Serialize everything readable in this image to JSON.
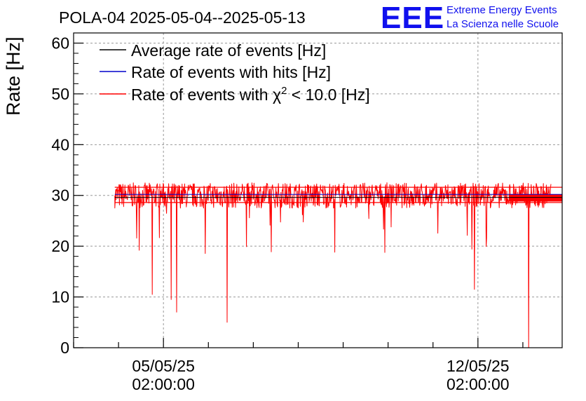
{
  "chart_data": {
    "type": "line",
    "title": "POLA-04 2025-05-04--2025-05-13",
    "ylabel": "Rate [Hz]",
    "xlabel": "",
    "ylim": [
      0,
      62
    ],
    "y_ticks": [
      0,
      10,
      20,
      30,
      40,
      50,
      60
    ],
    "x_tick_labels": [
      {
        "date": "05/05/25",
        "time": "02:00:00"
      },
      {
        "date": "12/05/25",
        "time": "02:00:00"
      }
    ],
    "x_range_days": [
      "2025-05-03 02:00",
      "2025-05-13 23:00"
    ],
    "grid": true,
    "legend_position": "top-left",
    "series": [
      {
        "name": "Average rate of events [Hz]",
        "color": "#000000",
        "baseline": 29.6
      },
      {
        "name": "Rate of events with hits [Hz]",
        "color": "#0000cc",
        "baseline": 30.2
      },
      {
        "name": "Rate of events with χ² < 10.0 [Hz]",
        "color": "#ff0000",
        "baseline": 30.0,
        "typical_range": [
          27.5,
          32.5
        ],
        "notable_dips": [
          {
            "date": "2025-05-04 20:00",
            "value": 10.5
          },
          {
            "date": "2025-05-05 06:00",
            "value": 9.5
          },
          {
            "date": "2025-05-05 09:00",
            "value": 7.0
          },
          {
            "date": "2025-05-06 12:00",
            "value": 5.0
          },
          {
            "date": "2025-05-12 00:00",
            "value": 11.5
          },
          {
            "date": "2025-05-13 05:00",
            "value": 0.0
          }
        ]
      }
    ]
  },
  "legend": {
    "avg_label": "Average rate of events [Hz]",
    "hits_label": "Rate of events with hits [Hz]",
    "chi_prefix": "Rate of events with ",
    "chi_symbol": "χ",
    "chi_sup": "2",
    "chi_suffix": " < 10.0 [Hz]"
  },
  "logo": {
    "big": "EEE",
    "line1": "Extreme Energy Events",
    "line2": "La Scienza nelle Scuole",
    "color": "#1010ee"
  }
}
